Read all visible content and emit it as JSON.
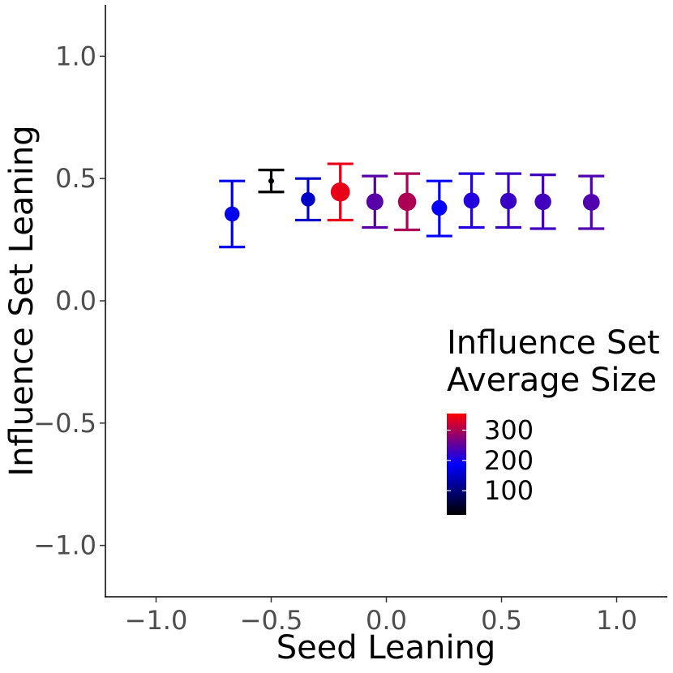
{
  "chart_data": {
    "type": "scatter",
    "title": "",
    "xlabel": "Seed Leaning",
    "ylabel": "Influence Set Leaning",
    "xlim": [
      -1.22,
      1.22
    ],
    "ylim": [
      -1.21,
      1.21
    ],
    "x_ticks": [
      -1.0,
      -0.5,
      0.0,
      0.5,
      1.0
    ],
    "x_tick_labels": [
      "−1.0",
      "−0.5",
      "0.0",
      "0.5",
      "1.0"
    ],
    "y_ticks": [
      -1.0,
      -0.5,
      0.0,
      0.5,
      1.0
    ],
    "y_tick_labels": [
      "−1.0",
      "−0.5",
      "0.0",
      "0.5",
      "1.0"
    ],
    "grid": false,
    "series": [
      {
        "name": "Influence Set Leaning",
        "points": [
          {
            "x": -0.67,
            "y": 0.355,
            "lower": 0.22,
            "upper": 0.49,
            "size": 175
          },
          {
            "x": -0.5,
            "y": 0.49,
            "lower": 0.445,
            "upper": 0.535,
            "size": 15
          },
          {
            "x": -0.34,
            "y": 0.415,
            "lower": 0.33,
            "upper": 0.5,
            "size": 150
          },
          {
            "x": -0.2,
            "y": 0.445,
            "lower": 0.33,
            "upper": 0.56,
            "size": 340
          },
          {
            "x": -0.05,
            "y": 0.405,
            "lower": 0.3,
            "upper": 0.51,
            "size": 245
          },
          {
            "x": 0.09,
            "y": 0.405,
            "lower": 0.29,
            "upper": 0.52,
            "size": 300
          },
          {
            "x": 0.23,
            "y": 0.38,
            "lower": 0.265,
            "upper": 0.49,
            "size": 190
          },
          {
            "x": 0.37,
            "y": 0.41,
            "lower": 0.3,
            "upper": 0.52,
            "size": 210
          },
          {
            "x": 0.53,
            "y": 0.408,
            "lower": 0.3,
            "upper": 0.52,
            "size": 225
          },
          {
            "x": 0.68,
            "y": 0.405,
            "lower": 0.295,
            "upper": 0.515,
            "size": 230
          },
          {
            "x": 0.89,
            "y": 0.403,
            "lower": 0.295,
            "upper": 0.51,
            "size": 240
          }
        ]
      }
    ],
    "legend": {
      "title_line1": "Influence Set",
      "title_line2": "Average Size",
      "placement": "right-center",
      "range": [
        20,
        355
      ],
      "ticks": [
        100,
        200,
        300
      ],
      "tick_labels": [
        "100",
        "200",
        "300"
      ],
      "color_low": "#000000",
      "color_mid": "#0000ff",
      "color_high": "#ff0000"
    }
  }
}
